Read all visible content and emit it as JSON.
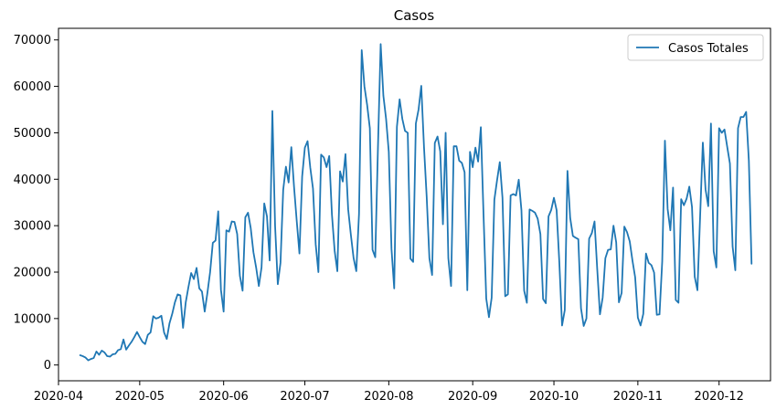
{
  "chart_data": {
    "type": "line",
    "title": "Casos",
    "xlabel": "",
    "ylabel": "",
    "x_start": "2020-04-09",
    "x_end": "2020-12-14",
    "xlim": [
      "2020-04-01",
      "2020-12-20"
    ],
    "ylim": [
      -3400,
      72500
    ],
    "x_tick_labels": [
      "2020-04",
      "2020-05",
      "2020-06",
      "2020-07",
      "2020-08",
      "2020-09",
      "2020-10",
      "2020-11",
      "2020-12"
    ],
    "y_tick_values": [
      0,
      10000,
      20000,
      30000,
      40000,
      50000,
      60000,
      70000
    ],
    "y_tick_labels": [
      "0",
      "10000",
      "20000",
      "30000",
      "40000",
      "50000",
      "60000",
      "70000"
    ],
    "grid": false,
    "legend_position": "top-right",
    "series": [
      {
        "name": "Casos Totales",
        "color": "#1f77b4",
        "values": [
          2100,
          1900,
          1600,
          1000,
          1300,
          1500,
          2900,
          2200,
          3100,
          2700,
          1900,
          1800,
          2300,
          2400,
          3200,
          3400,
          5500,
          3300,
          4200,
          5000,
          6000,
          7100,
          6000,
          5000,
          4500,
          6500,
          7000,
          10500,
          10000,
          10200,
          10600,
          7000,
          5600,
          9000,
          11000,
          13500,
          15200,
          15000,
          8000,
          13500,
          16800,
          19800,
          18500,
          20900,
          16500,
          15800,
          11500,
          15500,
          20000,
          26300,
          26800,
          33100,
          16200,
          11500,
          29000,
          28700,
          30900,
          30800,
          28200,
          19200,
          16000,
          31800,
          32800,
          29500,
          24300,
          21000,
          17000,
          21000,
          34800,
          32000,
          22500,
          54700,
          30000,
          17400,
          22000,
          37700,
          42700,
          39300,
          46900,
          38400,
          31000,
          24000,
          40600,
          46800,
          48200,
          42500,
          38000,
          26000,
          20000,
          45300,
          44700,
          42600,
          45000,
          32400,
          24600,
          20200,
          41700,
          39500,
          45400,
          33500,
          28000,
          23000,
          20200,
          32500,
          67800,
          60000,
          56000,
          51000,
          24800,
          23200,
          46800,
          69100,
          58000,
          53000,
          45900,
          25000,
          16500,
          51300,
          57200,
          53000,
          50400,
          50000,
          22900,
          22200,
          52000,
          55000,
          60100,
          47000,
          36200,
          23000,
          19400,
          47800,
          49200,
          46000,
          30300,
          50000,
          23000,
          17000,
          47100,
          47100,
          44000,
          43500,
          41500,
          16100,
          45900,
          42600,
          46800,
          43800,
          51200,
          32300,
          14300,
          10300,
          14500,
          35600,
          39800,
          43700,
          36000,
          14800,
          15200,
          36500,
          36800,
          36500,
          39900,
          33300,
          16000,
          13400,
          33500,
          33200,
          32800,
          31500,
          28200,
          14200,
          13300,
          32000,
          33400,
          36000,
          33300,
          22000,
          8500,
          11800,
          41800,
          31700,
          27800,
          27400,
          27100,
          12200,
          8400,
          10000,
          27200,
          28400,
          30900,
          20600,
          10900,
          14500,
          23000,
          24800,
          24900,
          30000,
          26400,
          13500,
          15500,
          29800,
          28600,
          26600,
          22500,
          18900,
          10200,
          8500,
          11000,
          24000,
          22000,
          21500,
          19900,
          10800,
          10900,
          22300,
          48300,
          33600,
          29000,
          38200,
          14000,
          13400,
          35700,
          34400,
          35800,
          38400,
          34000,
          19000,
          16100,
          32000,
          47900,
          37800,
          34200,
          52000,
          24500,
          21000,
          51000,
          50000,
          50700,
          47000,
          43400,
          25500,
          20400,
          51000,
          53400,
          53400,
          54500,
          44000,
          21800
        ]
      }
    ]
  }
}
